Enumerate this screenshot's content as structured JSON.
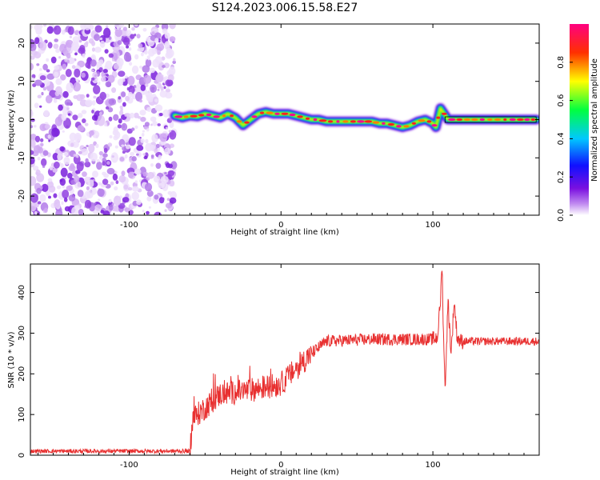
{
  "title": "S124.2023.006.15.58.E27",
  "chart_data": [
    {
      "type": "heatmap",
      "xlabel": "Height of straight line (km)",
      "ylabel": "Frequency (Hz)",
      "xlim": [
        -165,
        170
      ],
      "ylim": [
        -25,
        25
      ],
      "xticks": [
        -100,
        0,
        100
      ],
      "yticks": [
        -20,
        -10,
        0,
        10,
        20
      ],
      "noise_region_x": [
        -165,
        -70
      ],
      "ridge": {
        "x": [
          -70,
          -65,
          -60,
          -55,
          -50,
          -45,
          -40,
          -35,
          -30,
          -25,
          -20,
          -15,
          -10,
          -5,
          0,
          5,
          10,
          15,
          20,
          25,
          30,
          35,
          40,
          45,
          50,
          55,
          60,
          65,
          70,
          75,
          80,
          85,
          90,
          95,
          100,
          102,
          105,
          110,
          120,
          130,
          140,
          150,
          160,
          168
        ],
        "freq": [
          1,
          0.5,
          1,
          0.8,
          1.5,
          1,
          0.5,
          1.5,
          0.5,
          -1.5,
          0,
          1.5,
          2,
          1.5,
          1.5,
          1.5,
          1,
          0.5,
          0,
          0,
          -0.5,
          -0.5,
          -0.5,
          -0.5,
          -0.5,
          -0.5,
          -0.5,
          -1,
          -1,
          -1.5,
          -2,
          -1.5,
          -0.5,
          0,
          -1,
          -2,
          3,
          0,
          0,
          0,
          0,
          0,
          0,
          0
        ]
      },
      "colorbar": {
        "label": "Normalized spectral amplitude",
        "ticks": [
          0.0,
          0.2,
          0.4,
          0.6,
          0.8
        ],
        "tick_labels": [
          "0.0",
          "0.2",
          "0.4",
          "0.6",
          "0.8"
        ],
        "colormap": [
          "#ffffff",
          "#9a20e0",
          "#1010ff",
          "#00c8ff",
          "#00ff40",
          "#ffff00",
          "#ff3000",
          "#ff0080"
        ]
      }
    },
    {
      "type": "line",
      "xlabel": "Height of straight line (km)",
      "ylabel": "SNR (10 * v/v)",
      "xlim": [
        -165,
        170
      ],
      "ylim": [
        0,
        470
      ],
      "xticks": [
        -100,
        0,
        100
      ],
      "yticks": [
        0,
        100,
        200,
        300,
        400
      ],
      "color": "#e83030",
      "trend": {
        "x": [
          -165,
          -60,
          -58,
          -40,
          -20,
          0,
          20,
          30,
          60,
          90,
          100,
          103,
          105,
          106,
          107,
          108,
          110,
          112,
          114,
          116,
          118,
          120,
          140,
          170
        ],
        "y": [
          10,
          10,
          90,
          150,
          160,
          175,
          250,
          280,
          285,
          285,
          285,
          290,
          380,
          470,
          300,
          160,
          380,
          250,
          380,
          290,
          280,
          280,
          280,
          280
        ]
      }
    }
  ]
}
